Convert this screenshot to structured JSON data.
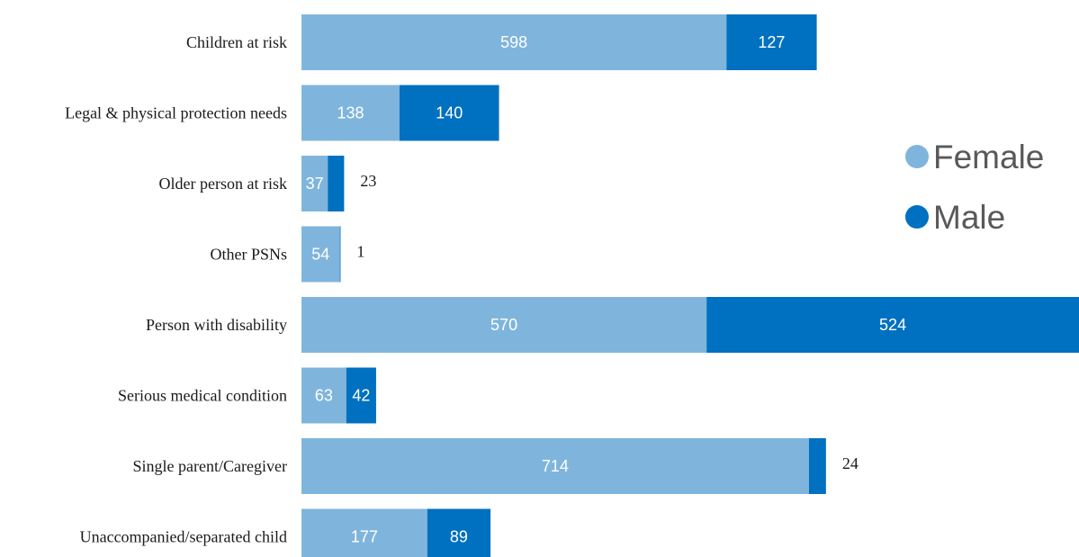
{
  "chart_data": {
    "type": "bar",
    "orientation": "horizontal",
    "stacked": true,
    "categories": [
      "Children at risk",
      "Legal & physical protection needs",
      "Older person at risk",
      "Other PSNs",
      "Person with disability",
      "Serious medical condition",
      "Single parent/Caregiver",
      "Unaccompanied/separated child"
    ],
    "series": [
      {
        "name": "Female",
        "color": "#7fb5dc",
        "values": [
          598,
          138,
          37,
          54,
          570,
          63,
          714,
          177
        ]
      },
      {
        "name": "Male",
        "color": "#0070c0",
        "values": [
          127,
          140,
          23,
          1,
          524,
          42,
          24,
          89
        ]
      }
    ],
    "xlim": [
      0,
      1094
    ],
    "grid": false,
    "legend": {
      "position": "right",
      "entries": [
        "Female",
        "Male"
      ]
    }
  }
}
